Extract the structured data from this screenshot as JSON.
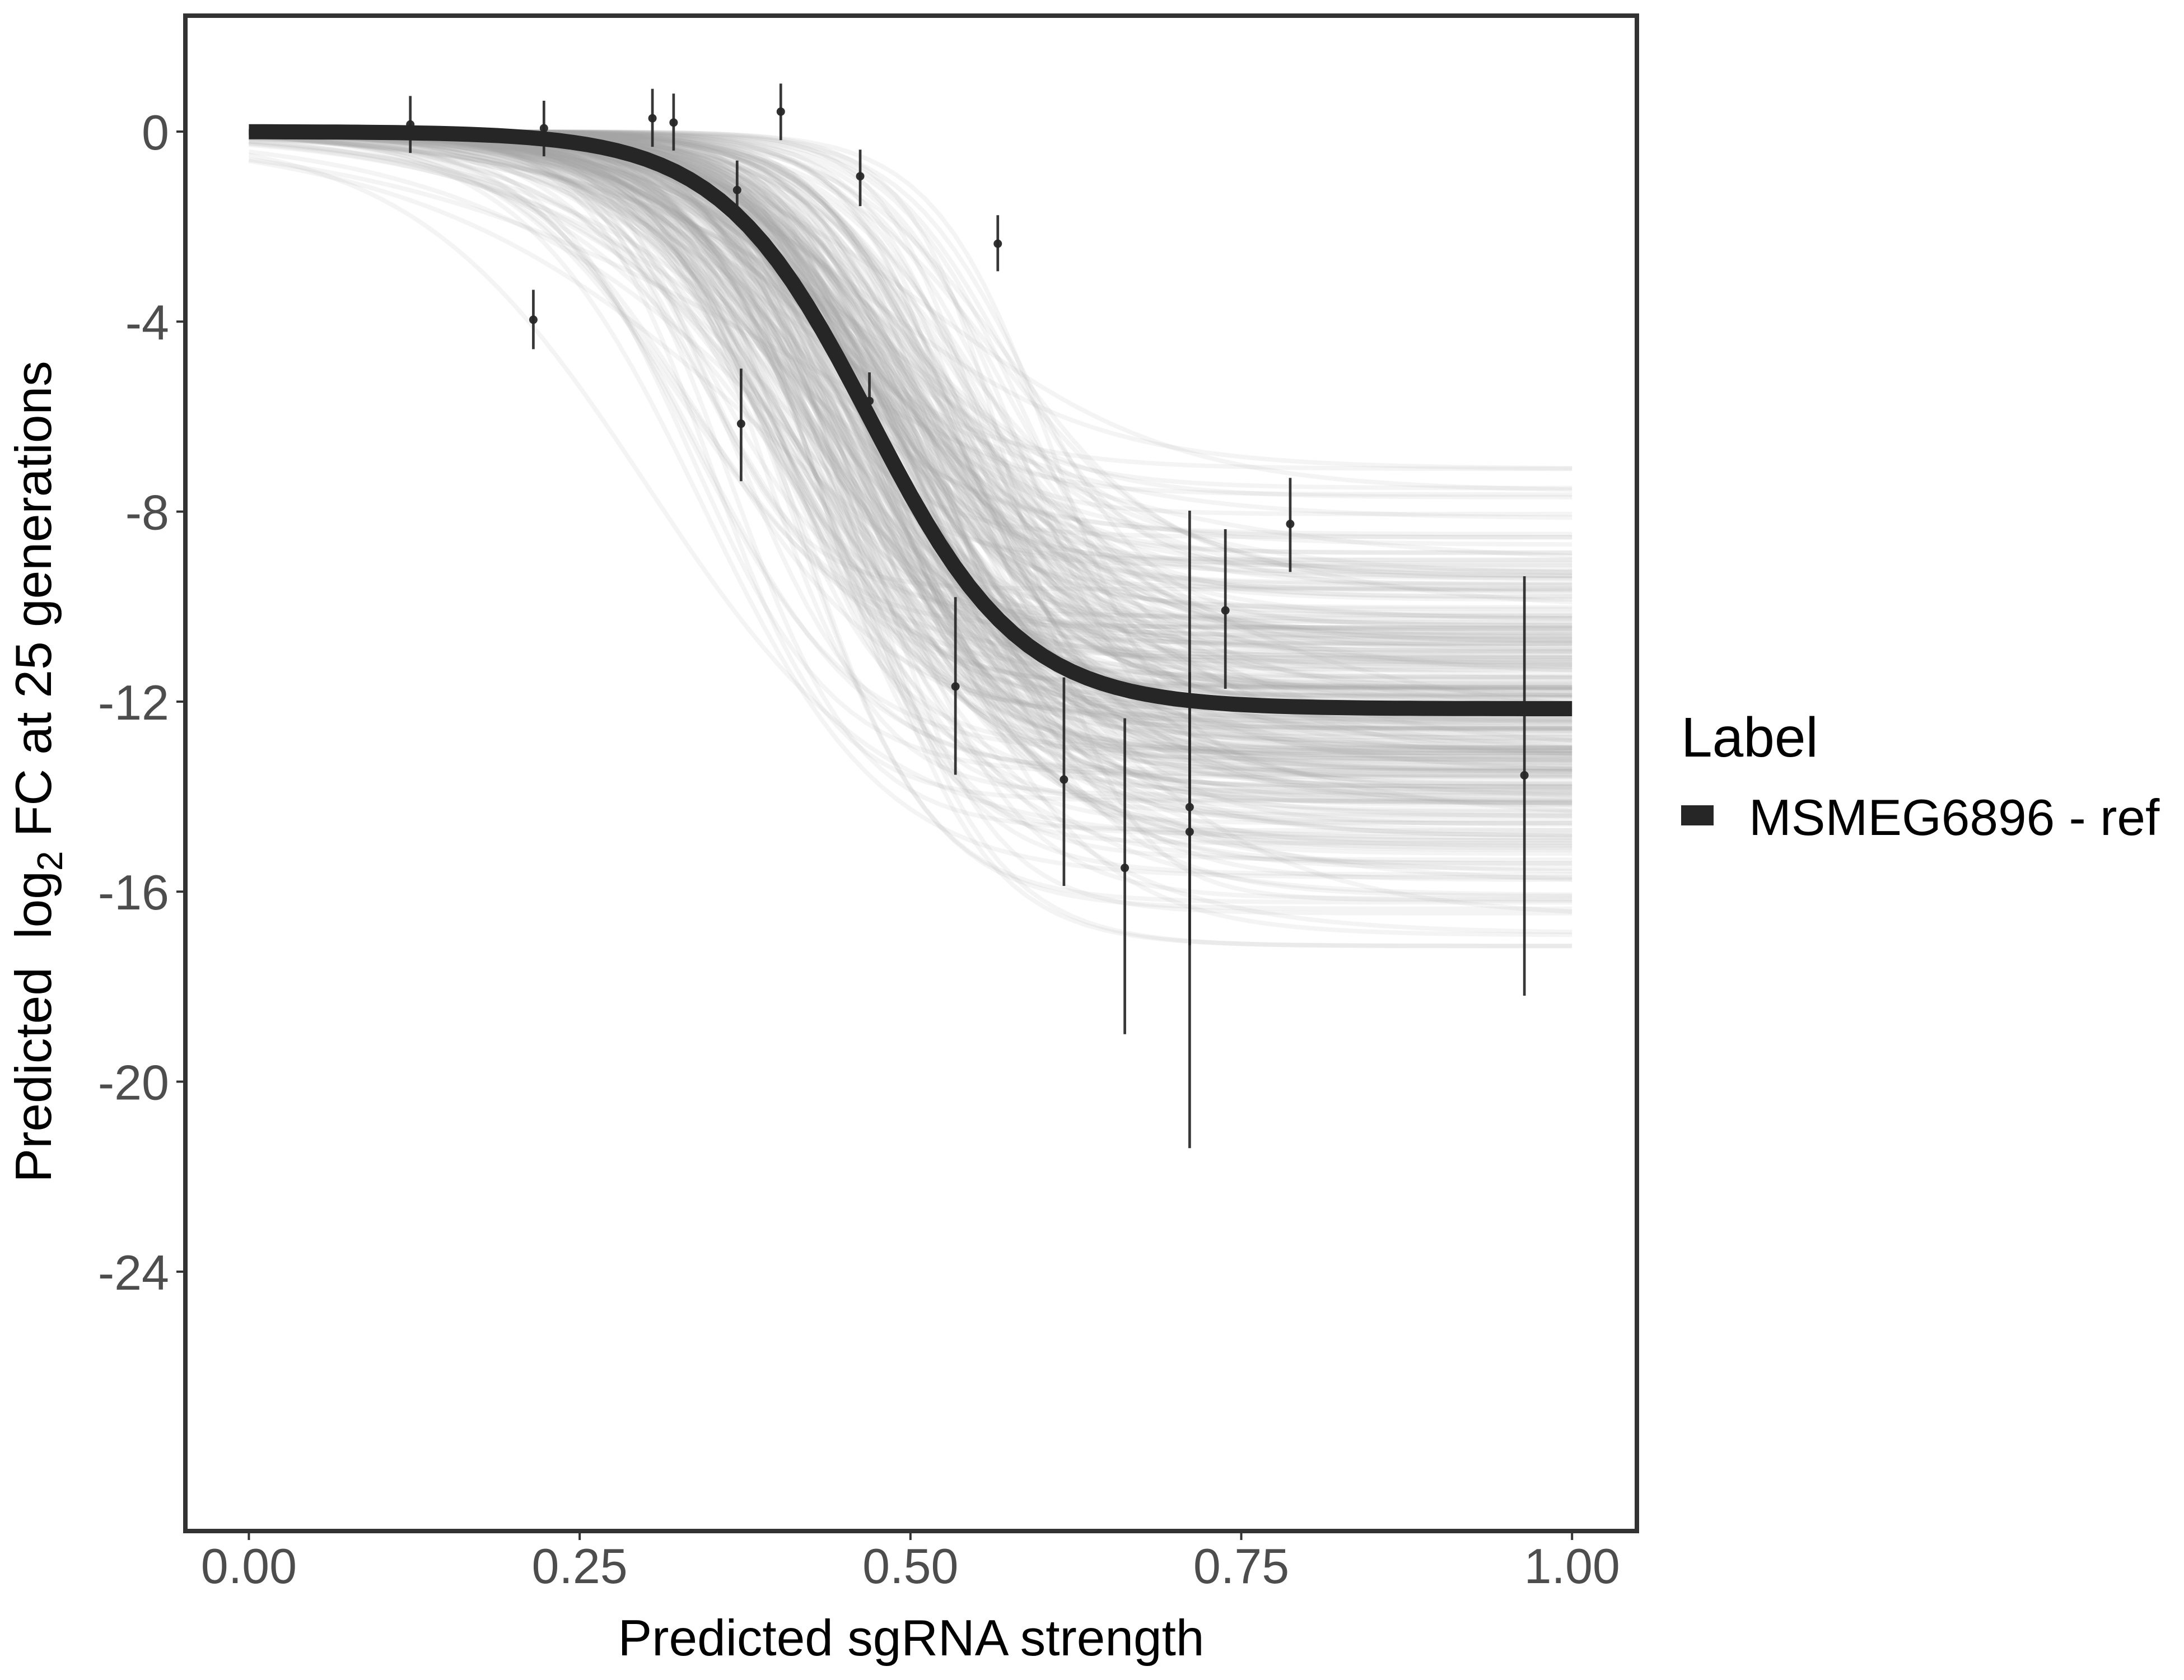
{
  "chart_data": {
    "type": "scatter",
    "title": "",
    "xlabel": "Predicted sgRNA strength",
    "ylabel": {
      "prefix": "Predicted  log",
      "subscript": "2",
      "suffix": " FC at 25 generations"
    },
    "xlim": [
      -0.048,
      1.049
    ],
    "ylim": [
      -29.46,
      2.44
    ],
    "x_ticks": [
      0,
      0.25,
      0.5,
      0.75,
      1
    ],
    "x_tick_labels": [
      "0.00",
      "0.25",
      "0.50",
      "0.75",
      "1.00"
    ],
    "y_ticks": [
      0,
      -4,
      -8,
      -12,
      -16,
      -20,
      -24
    ],
    "y_tick_labels": [
      "0",
      "-4",
      "-8",
      "-12",
      "-16",
      "-20",
      "-24"
    ],
    "grid": false,
    "legend": {
      "title": "Label",
      "position": "right",
      "entries": [
        {
          "label": "MSMEG6896 - ref",
          "color": "#262626"
        }
      ]
    },
    "colors": {
      "fit_line": "#262626",
      "points": "#262626",
      "draws": "#a8a8a8",
      "panel_border": "#333333",
      "tick_label": "#4d4d4d"
    },
    "fit": {
      "name": "MSMEG6896 - ref",
      "kind": "logistic",
      "asymptote": -12.15,
      "midpoint": 0.47,
      "slope": 17.6,
      "x_range": [
        0,
        1
      ]
    },
    "posterior_draws": {
      "kind": "logistic_samples",
      "n": 300,
      "asymptote_mean": -12.3,
      "asymptote_sd": 2.1,
      "asymptote_range": [
        -18.3,
        -7.1
      ],
      "midpoint_mean": 0.47,
      "midpoint_sd": 0.055,
      "slope_mean": 17,
      "slope_sd": 4,
      "x_range": [
        0,
        1
      ]
    },
    "series": [
      {
        "name": "MSMEG6896 - ref",
        "kind": "points_with_errorbars",
        "points": [
          {
            "x": 0.122,
            "y": 0.15,
            "ymin": -0.45,
            "ymax": 0.75
          },
          {
            "x": 0.215,
            "y": -3.96,
            "ymin": -4.58,
            "ymax": -3.33
          },
          {
            "x": 0.223,
            "y": 0.07,
            "ymin": -0.52,
            "ymax": 0.65
          },
          {
            "x": 0.305,
            "y": 0.28,
            "ymin": -0.32,
            "ymax": 0.9
          },
          {
            "x": 0.321,
            "y": 0.19,
            "ymin": -0.4,
            "ymax": 0.8
          },
          {
            "x": 0.369,
            "y": -1.23,
            "ymin": -1.8,
            "ymax": -0.61
          },
          {
            "x": 0.372,
            "y": -6.15,
            "ymin": -7.36,
            "ymax": -4.99
          },
          {
            "x": 0.402,
            "y": 0.42,
            "ymin": -0.18,
            "ymax": 1.01
          },
          {
            "x": 0.462,
            "y": -0.94,
            "ymin": -1.57,
            "ymax": -0.38
          },
          {
            "x": 0.469,
            "y": -5.67,
            "ymin": -5.95,
            "ymax": -5.07
          },
          {
            "x": 0.534,
            "y": -11.68,
            "ymin": -13.54,
            "ymax": -9.8
          },
          {
            "x": 0.566,
            "y": -2.36,
            "ymin": -2.94,
            "ymax": -1.76
          },
          {
            "x": 0.616,
            "y": -13.64,
            "ymin": -15.88,
            "ymax": -11.49
          },
          {
            "x": 0.662,
            "y": -15.5,
            "ymin": -19.0,
            "ymax": -12.35
          },
          {
            "x": 0.711,
            "y": -14.22,
            "ymin": -17.13,
            "ymax": -11.38
          },
          {
            "x": 0.711,
            "y": -14.74,
            "ymin": -21.4,
            "ymax": -7.98
          },
          {
            "x": 0.738,
            "y": -10.08,
            "ymin": -11.73,
            "ymax": -8.37
          },
          {
            "x": 0.787,
            "y": -8.26,
            "ymin": -9.27,
            "ymax": -7.29
          },
          {
            "x": 0.964,
            "y": -13.55,
            "ymin": -18.19,
            "ymax": -9.36
          }
        ]
      }
    ]
  }
}
